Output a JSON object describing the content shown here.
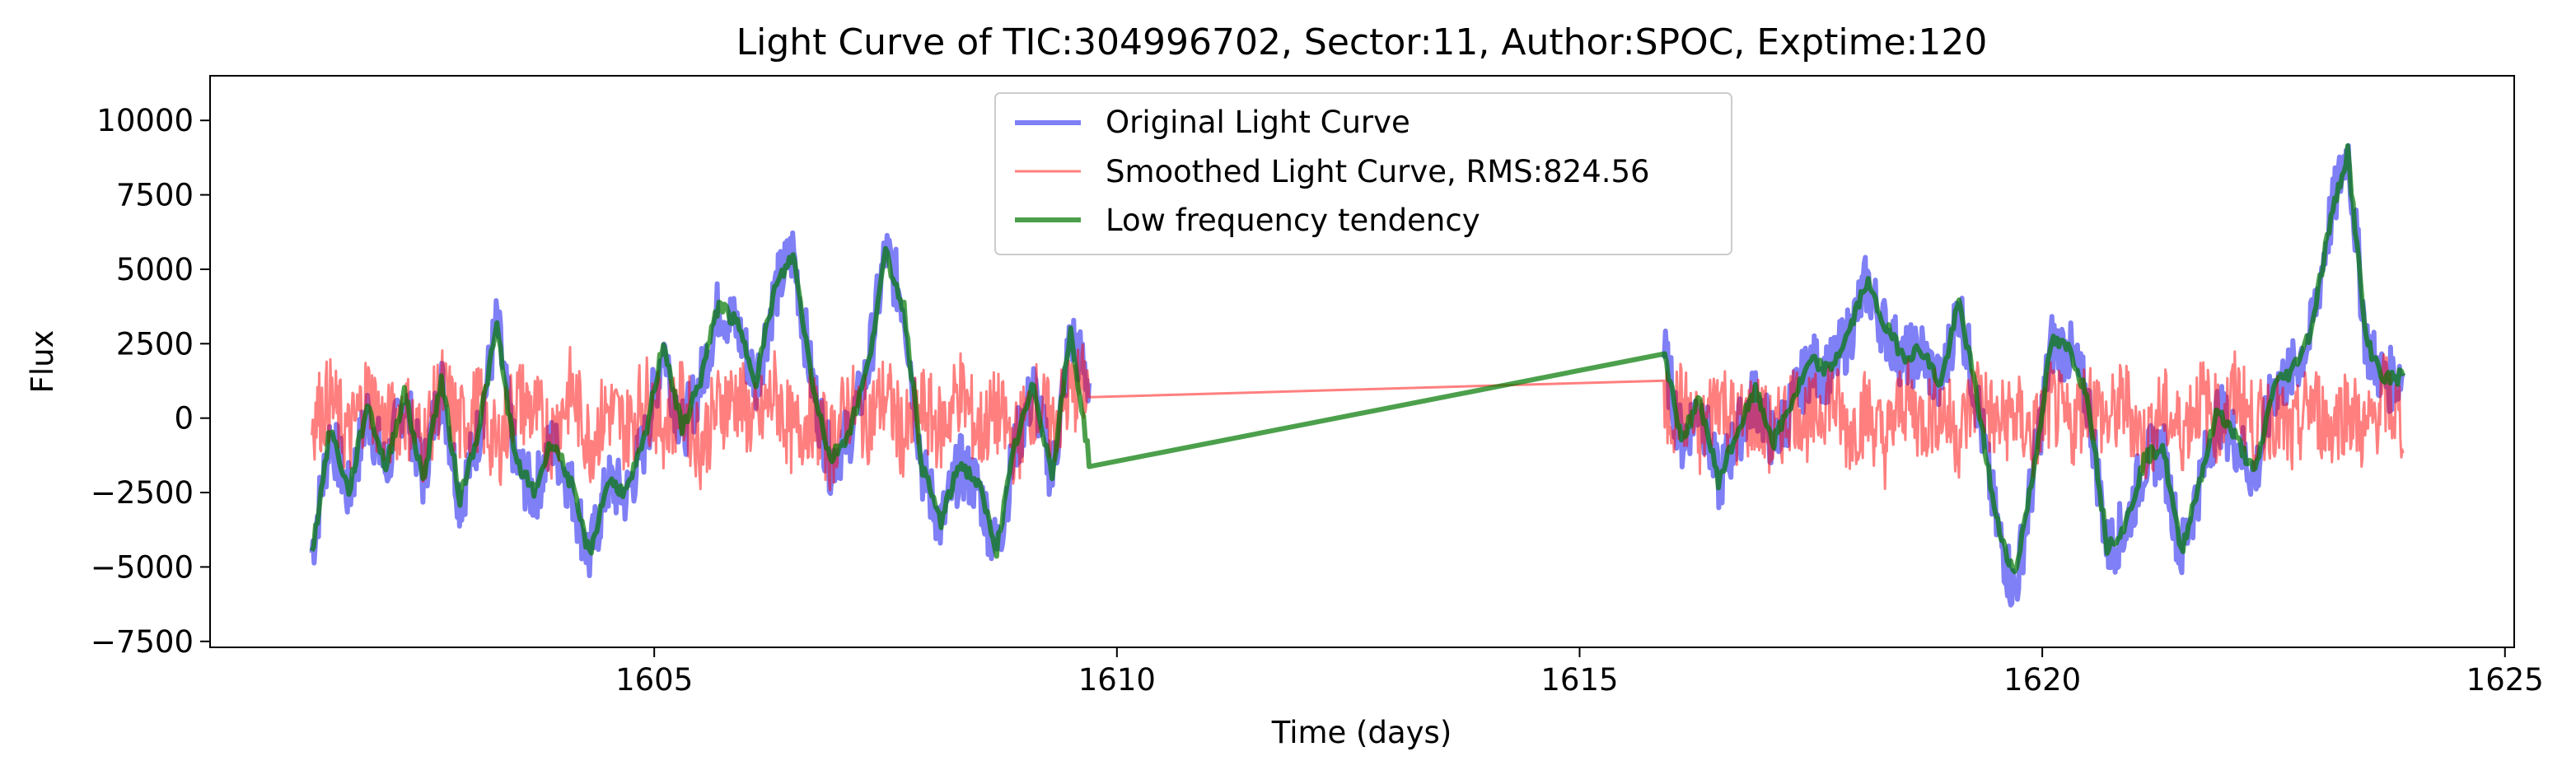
{
  "chart_data": {
    "type": "line",
    "title": "Light Curve of TIC:304996702, Sector:11, Author:SPOC, Exptime:120",
    "xlabel": "Time (days)",
    "ylabel": "Flux",
    "xlim": [
      1600.2,
      1625.1
    ],
    "ylim": [
      -7700,
      11500
    ],
    "xticks": [
      1605,
      1610,
      1615,
      1620,
      1625
    ],
    "yticks": [
      -7500,
      -5000,
      -2500,
      0,
      2500,
      5000,
      7500,
      10000
    ],
    "xtick_labels": [
      "1605",
      "1610",
      "1615",
      "1620",
      "1625"
    ],
    "ytick_labels": [
      "−7500",
      "−5000",
      "−2500",
      "0",
      "2500",
      "5000",
      "7500",
      "10000"
    ],
    "grid": false,
    "legend_position": "top-center",
    "gap": [
      1609.7,
      1615.9
    ],
    "series": [
      {
        "name": "Original Light Curve",
        "color": "#0000ee",
        "opacity": 0.5,
        "x": [
          1601.3,
          1601.5,
          1601.7,
          1601.9,
          1602.1,
          1602.3,
          1602.5,
          1602.7,
          1602.9,
          1603.1,
          1603.3,
          1603.5,
          1603.7,
          1603.9,
          1604.1,
          1604.3,
          1604.5,
          1604.7,
          1604.9,
          1605.1,
          1605.3,
          1605.5,
          1605.7,
          1605.9,
          1606.1,
          1606.3,
          1606.5,
          1606.7,
          1606.9,
          1607.1,
          1607.3,
          1607.5,
          1607.7,
          1607.9,
          1608.1,
          1608.3,
          1608.5,
          1608.7,
          1608.9,
          1609.1,
          1609.3,
          1609.5,
          1609.7,
          1615.9,
          1616.1,
          1616.3,
          1616.5,
          1616.7,
          1616.9,
          1617.1,
          1617.3,
          1617.5,
          1617.7,
          1617.9,
          1618.1,
          1618.3,
          1618.5,
          1618.7,
          1618.9,
          1619.1,
          1619.3,
          1619.5,
          1619.7,
          1619.9,
          1620.1,
          1620.3,
          1620.5,
          1620.7,
          1620.9,
          1621.1,
          1621.3,
          1621.5,
          1621.7,
          1621.9,
          1622.1,
          1622.3,
          1622.5,
          1622.7,
          1622.9,
          1623.1,
          1623.3,
          1623.5,
          1623.7,
          1623.9
        ],
        "y": [
          -4500,
          -500,
          -2600,
          200,
          -1800,
          800,
          -2000,
          1200,
          -2800,
          -500,
          3200,
          -1500,
          -2600,
          -800,
          -2300,
          -4700,
          -2200,
          -2600,
          -800,
          2500,
          -500,
          1200,
          3800,
          3000,
          1200,
          4200,
          5600,
          1300,
          -1500,
          -600,
          1500,
          5600,
          3800,
          -1800,
          -3600,
          -1600,
          -2300,
          -4500,
          -1000,
          1000,
          -2000,
          2800,
          1200,
          2400,
          -800,
          500,
          -2200,
          -600,
          800,
          -900,
          500,
          1800,
          1500,
          2700,
          4500,
          3000,
          2000,
          2200,
          1000,
          3800,
          500,
          -3500,
          -5900,
          -2000,
          2500,
          2200,
          500,
          -4400,
          -3700,
          -1500,
          -1000,
          -4600,
          -2200,
          200,
          -800,
          -2000,
          1000,
          1500,
          2800,
          6500,
          9100,
          2500,
          1200,
          1500
        ]
      },
      {
        "name": "Smoothed Light Curve, RMS:824.56",
        "color": "#ff0000",
        "opacity": 0.5,
        "x": [
          1601.3,
          1601.5,
          1601.7,
          1601.9,
          1602.1,
          1602.3,
          1602.5,
          1602.7,
          1602.9,
          1603.1,
          1603.3,
          1603.5,
          1603.7,
          1603.9,
          1604.1,
          1604.3,
          1604.5,
          1604.7,
          1604.9,
          1605.1,
          1605.3,
          1605.5,
          1605.7,
          1605.9,
          1606.1,
          1606.3,
          1606.5,
          1606.7,
          1606.9,
          1607.1,
          1607.3,
          1607.5,
          1607.7,
          1607.9,
          1608.1,
          1608.3,
          1608.5,
          1608.7,
          1608.9,
          1609.1,
          1609.3,
          1609.5,
          1609.7,
          1615.9,
          1616.1,
          1616.3,
          1616.5,
          1616.7,
          1616.9,
          1617.1,
          1617.3,
          1617.5,
          1617.7,
          1617.9,
          1618.1,
          1618.3,
          1618.5,
          1618.7,
          1618.9,
          1619.1,
          1619.3,
          1619.5,
          1619.7,
          1619.9,
          1620.1,
          1620.3,
          1620.5,
          1620.7,
          1620.9,
          1621.1,
          1621.3,
          1621.5,
          1621.7,
          1621.9,
          1622.1,
          1622.3,
          1622.5,
          1622.7,
          1622.9,
          1623.1,
          1623.3,
          1623.5,
          1623.7,
          1623.9
        ],
        "y": [
          0,
          600,
          -700,
          900,
          -400,
          300,
          -900,
          1000,
          -300,
          400,
          -1100,
          700,
          200,
          -600,
          1000,
          -800,
          300,
          -400,
          800,
          -200,
          500,
          -900,
          400,
          700,
          -300,
          900,
          -600,
          200,
          -1000,
          500,
          -100,
          800,
          -700,
          300,
          -400,
          1000,
          -500,
          200,
          -900,
          600,
          -300,
          800,
          1200,
          0,
          500,
          -700,
          900,
          -300,
          200,
          -800,
          600,
          -200,
          900,
          -500,
          300,
          -900,
          700,
          -100,
          400,
          -600,
          1000,
          -300,
          200,
          -700,
          500,
          -400,
          800,
          -200,
          600,
          -900,
          300,
          -500,
          700,
          -100,
          900,
          -400,
          200,
          -800,
          600,
          -300,
          400,
          -600,
          800,
          -200
        ]
      },
      {
        "name": "Low frequency tendency",
        "color": "#007700",
        "opacity": 0.7,
        "x": [
          1601.3,
          1601.5,
          1601.7,
          1601.9,
          1602.1,
          1602.3,
          1602.5,
          1602.7,
          1602.9,
          1603.1,
          1603.3,
          1603.5,
          1603.7,
          1603.9,
          1604.1,
          1604.3,
          1604.5,
          1604.7,
          1604.9,
          1605.1,
          1605.3,
          1605.5,
          1605.7,
          1605.9,
          1606.1,
          1606.3,
          1606.5,
          1606.7,
          1606.9,
          1607.1,
          1607.3,
          1607.5,
          1607.7,
          1607.9,
          1608.1,
          1608.3,
          1608.5,
          1608.7,
          1608.9,
          1609.1,
          1609.3,
          1609.5,
          1609.7,
          1615.9,
          1616.1,
          1616.3,
          1616.5,
          1616.7,
          1616.9,
          1617.1,
          1617.3,
          1617.5,
          1617.7,
          1617.9,
          1618.1,
          1618.3,
          1618.5,
          1618.7,
          1618.9,
          1619.1,
          1619.3,
          1619.5,
          1619.7,
          1619.9,
          1620.1,
          1620.3,
          1620.5,
          1620.7,
          1620.9,
          1621.1,
          1621.3,
          1621.5,
          1621.7,
          1621.9,
          1622.1,
          1622.3,
          1622.5,
          1622.7,
          1622.9,
          1623.1,
          1623.3,
          1623.5,
          1623.7,
          1623.9
        ],
        "y": [
          -4600,
          -300,
          -2500,
          500,
          -1700,
          900,
          -2100,
          1300,
          -2700,
          -400,
          3100,
          -1400,
          -2500,
          -700,
          -2200,
          -4600,
          -2100,
          -2500,
          -700,
          2600,
          -400,
          1300,
          3900,
          3100,
          1300,
          4300,
          5500,
          1400,
          -1400,
          -500,
          1600,
          5500,
          3700,
          -1700,
          -3500,
          -1500,
          -2200,
          -4400,
          -900,
          1100,
          -1900,
          2900,
          -1400,
          2400,
          -700,
          600,
          -2100,
          -500,
          900,
          -800,
          600,
          1900,
          1600,
          2800,
          4600,
          3100,
          2100,
          2300,
          1100,
          3900,
          600,
          -3400,
          -5300,
          -1900,
          2600,
          2300,
          600,
          -4300,
          -3600,
          -1400,
          -900,
          -4500,
          -2100,
          300,
          -700,
          -1900,
          1100,
          1600,
          2900,
          6400,
          9000,
          2600,
          1300,
          1400
        ]
      }
    ]
  }
}
